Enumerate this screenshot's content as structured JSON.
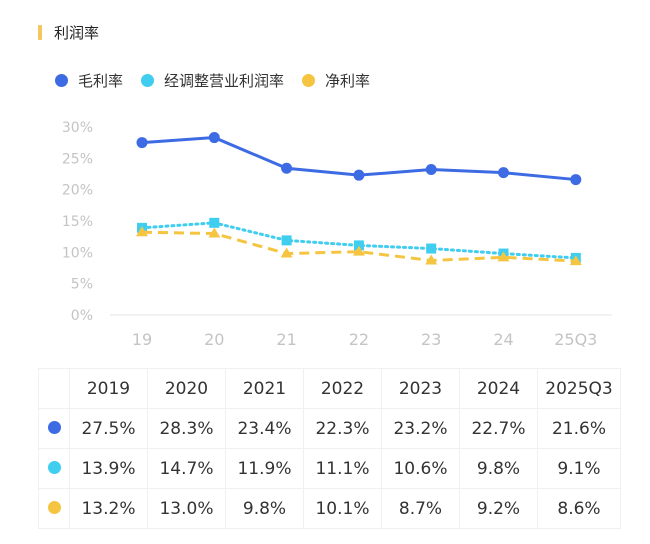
{
  "title": "利润率",
  "chart_data": {
    "type": "line",
    "categories": [
      "19",
      "20",
      "21",
      "22",
      "23",
      "24",
      "25Q3"
    ],
    "yticks": [
      "0%",
      "5%",
      "10%",
      "15%",
      "20%",
      "25%",
      "30%"
    ],
    "ylim": [
      0,
      30
    ],
    "grid": false,
    "legend_position": "top-left",
    "series": [
      {
        "name": "毛利率",
        "color": "#3d6be3",
        "marker": "circle",
        "line": "solid",
        "values": [
          27.5,
          28.3,
          23.4,
          22.3,
          23.2,
          22.7,
          21.6
        ]
      },
      {
        "name": "经调整营业利润率",
        "color": "#3fcdf0",
        "marker": "square",
        "line": "dotted",
        "values": [
          13.9,
          14.7,
          11.9,
          11.1,
          10.6,
          9.8,
          9.1
        ]
      },
      {
        "name": "净利率",
        "color": "#f5c542",
        "marker": "triangle",
        "line": "dashed",
        "values": [
          13.2,
          13.0,
          9.8,
          10.1,
          8.7,
          9.2,
          8.6
        ]
      }
    ]
  },
  "table": {
    "headers": [
      "2019",
      "2020",
      "2021",
      "2022",
      "2023",
      "2024",
      "2025Q3"
    ],
    "rows": [
      [
        "27.5%",
        "28.3%",
        "23.4%",
        "22.3%",
        "23.2%",
        "22.7%",
        "21.6%"
      ],
      [
        "13.9%",
        "14.7%",
        "11.9%",
        "11.1%",
        "10.6%",
        "9.8%",
        "9.1%"
      ],
      [
        "13.2%",
        "13.0%",
        "9.8%",
        "10.1%",
        "8.7%",
        "9.2%",
        "8.6%"
      ]
    ]
  }
}
